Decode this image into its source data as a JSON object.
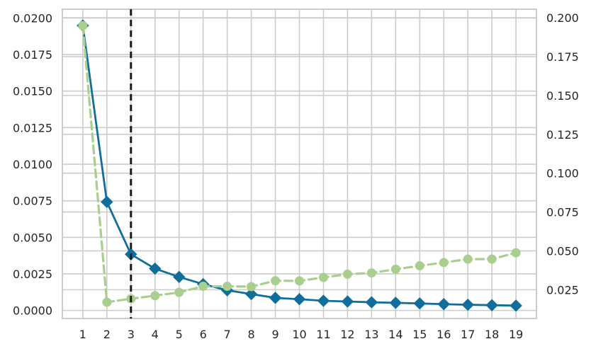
{
  "chart_data": {
    "type": "line",
    "title": "",
    "xlabel": "",
    "ylabel": "",
    "y2label": "",
    "categories": [
      "1",
      "2",
      "3",
      "4",
      "5",
      "6",
      "7",
      "8",
      "9",
      "10",
      "11",
      "12",
      "13",
      "14",
      "15",
      "16",
      "17",
      "18",
      "19"
    ],
    "x": [
      1,
      2,
      3,
      4,
      5,
      6,
      7,
      8,
      9,
      10,
      11,
      12,
      13,
      14,
      15,
      16,
      17,
      18,
      19
    ],
    "ylim": [
      -0.00055,
      0.0206
    ],
    "y2lim": [
      0.0065,
      0.2055
    ],
    "yticks": [
      "0.0000",
      "0.0025",
      "0.0050",
      "0.0075",
      "0.0100",
      "0.0125",
      "0.0150",
      "0.0175",
      "0.0200"
    ],
    "y2ticks": [
      "0.025",
      "0.050",
      "0.075",
      "0.100",
      "0.125",
      "0.150",
      "0.175",
      "0.200"
    ],
    "grid": true,
    "legend": "none",
    "series": [
      {
        "axis": "left",
        "style": "solid",
        "marker": "diamond",
        "color": "#0f6e9b",
        "values": [
          0.01948,
          0.00742,
          0.00384,
          0.00286,
          0.00229,
          0.0018,
          0.00138,
          0.00112,
          0.00086,
          0.00077,
          0.00066,
          0.00061,
          0.00056,
          0.00052,
          0.00048,
          0.00043,
          0.00039,
          0.00036,
          0.00033
        ]
      },
      {
        "axis": "right",
        "style": "dashed",
        "marker": "circle",
        "color": "#a9cf8e",
        "values": [
          0.1949,
          0.017,
          0.0192,
          0.0212,
          0.0233,
          0.0272,
          0.0272,
          0.027,
          0.0308,
          0.0307,
          0.0329,
          0.035,
          0.0358,
          0.0382,
          0.0404,
          0.0425,
          0.0447,
          0.0447,
          0.0488
        ]
      }
    ],
    "vline": {
      "x": 3,
      "style": "dashed",
      "color": "#1a1a1a"
    }
  }
}
